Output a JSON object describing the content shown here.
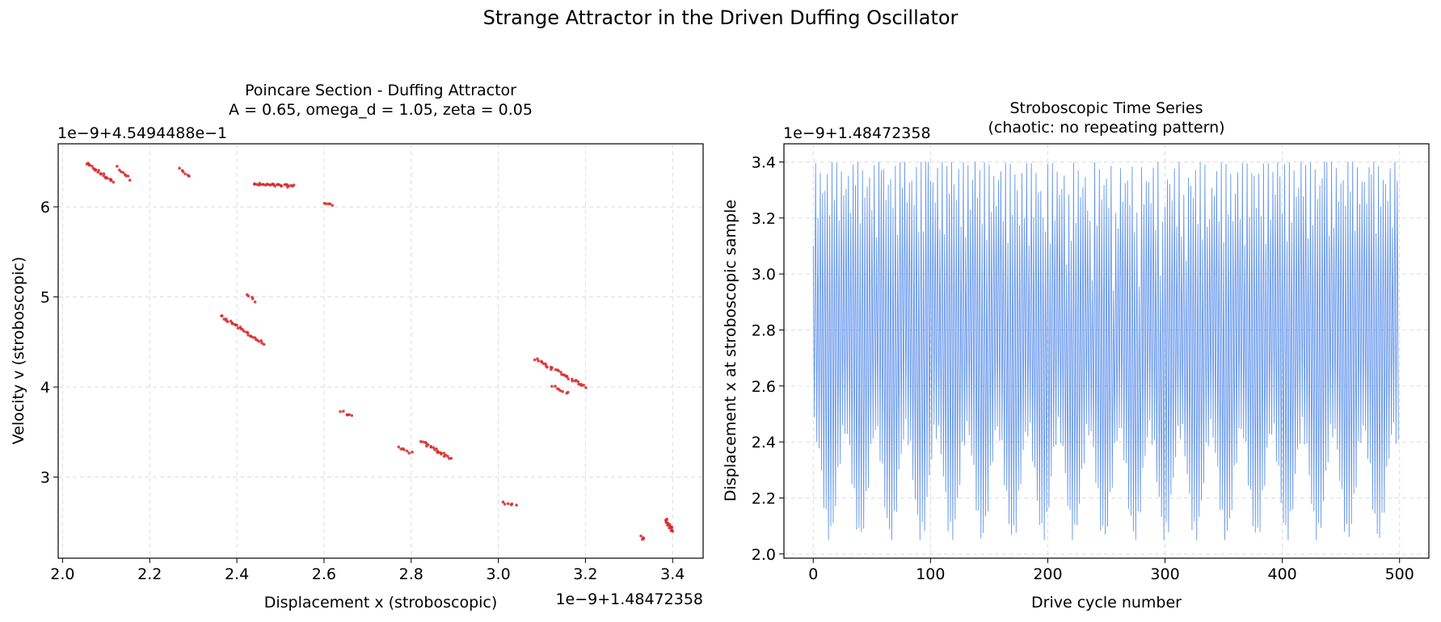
{
  "figure": {
    "suptitle": "Strange Attractor in the Driven Duffing Oscillator"
  },
  "chart_data": [
    {
      "type": "scatter",
      "title_line1": "Poincare Section - Duffing Attractor",
      "title_line2": "A = 0.65, omega_d = 1.05, zeta = 0.05",
      "xlabel": "Displacement x (stroboscopic)",
      "ylabel": "Velocity v (stroboscopic)",
      "x_offset_label": "1e−9+1.48472358",
      "y_offset_label": "1e−9+4.5494488e−1",
      "xlim": [
        1.99,
        3.47
      ],
      "ylim": [
        2.1,
        6.7
      ],
      "xticks": [
        2.0,
        2.2,
        2.4,
        2.6,
        2.8,
        3.0,
        3.2,
        3.4
      ],
      "xtick_labels": [
        "2.0",
        "2.2",
        "2.4",
        "2.6",
        "2.8",
        "3.0",
        "3.2",
        "3.4"
      ],
      "yticks": [
        3,
        4,
        5,
        6
      ],
      "ytick_labels": [
        "3",
        "4",
        "5",
        "6"
      ],
      "grid": true,
      "color": "#d62728",
      "clusters": [
        {
          "x0": 2.055,
          "y0": 6.48,
          "x1": 2.115,
          "y1": 6.28,
          "n": 22
        },
        {
          "x0": 2.125,
          "y0": 6.44,
          "x1": 2.155,
          "y1": 6.31,
          "n": 8
        },
        {
          "x0": 2.27,
          "y0": 6.44,
          "x1": 2.29,
          "y1": 6.33,
          "n": 6
        },
        {
          "x0": 2.44,
          "y0": 6.25,
          "x1": 2.53,
          "y1": 6.23,
          "n": 30
        },
        {
          "x0": 2.6,
          "y0": 6.05,
          "x1": 2.62,
          "y1": 6.02,
          "n": 5
        },
        {
          "x0": 2.425,
          "y0": 5.03,
          "x1": 2.44,
          "y1": 4.95,
          "n": 5
        },
        {
          "x0": 2.365,
          "y0": 4.79,
          "x1": 2.46,
          "y1": 4.48,
          "n": 30
        },
        {
          "x0": 2.64,
          "y0": 3.73,
          "x1": 2.665,
          "y1": 3.67,
          "n": 6
        },
        {
          "x0": 2.77,
          "y0": 3.32,
          "x1": 2.8,
          "y1": 3.27,
          "n": 7
        },
        {
          "x0": 2.825,
          "y0": 3.39,
          "x1": 2.89,
          "y1": 3.21,
          "n": 22
        },
        {
          "x0": 3.01,
          "y0": 2.72,
          "x1": 3.04,
          "y1": 2.68,
          "n": 6
        },
        {
          "x0": 3.085,
          "y0": 4.31,
          "x1": 3.2,
          "y1": 4.0,
          "n": 32
        },
        {
          "x0": 3.125,
          "y0": 4.02,
          "x1": 3.16,
          "y1": 3.93,
          "n": 8
        },
        {
          "x0": 3.33,
          "y0": 2.34,
          "x1": 3.335,
          "y1": 2.31,
          "n": 4
        },
        {
          "x0": 3.385,
          "y0": 2.53,
          "x1": 3.4,
          "y1": 2.4,
          "n": 16
        }
      ]
    },
    {
      "type": "line",
      "title_line1": "Stroboscopic Time Series",
      "title_line2": "(chaotic: no repeating pattern)",
      "xlabel": "Drive cycle number",
      "ylabel": "Displacement x at stroboscopic sample",
      "y_offset_label": "1e−9+1.48472358",
      "xlim": [
        -25,
        525
      ],
      "ylim": [
        1.985,
        3.465
      ],
      "xticks": [
        0,
        100,
        200,
        300,
        400,
        500
      ],
      "xtick_labels": [
        "0",
        "100",
        "200",
        "300",
        "400",
        "500"
      ],
      "yticks": [
        2.0,
        2.2,
        2.4,
        2.6,
        2.8,
        3.0,
        3.2,
        3.4
      ],
      "ytick_labels": [
        "2.0",
        "2.2",
        "2.4",
        "2.6",
        "2.8",
        "3.0",
        "3.2",
        "3.4"
      ],
      "grid": true,
      "color": "#6495ed",
      "n_points": 500,
      "y_range": [
        2.05,
        3.4
      ]
    }
  ]
}
